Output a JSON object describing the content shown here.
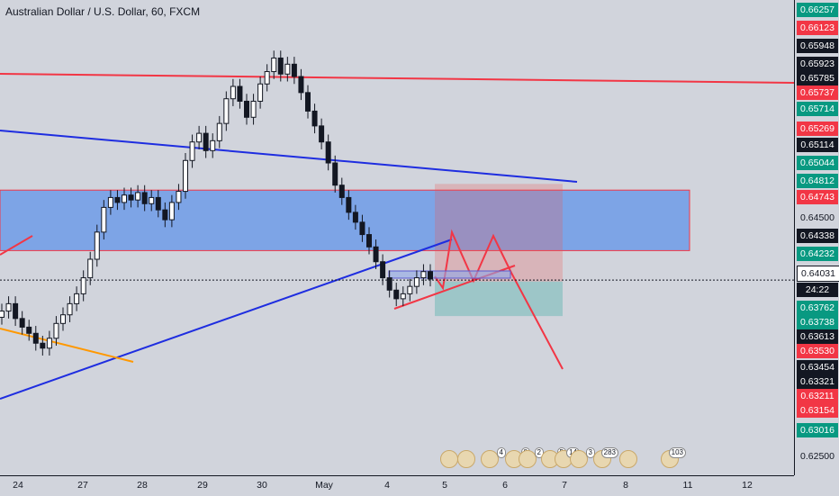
{
  "header": {
    "title": "Australian Dollar / U.S. Dollar, 60, FXCM"
  },
  "colors": {
    "background": "#d1d4dc",
    "bull": "#131722",
    "bear": "#131722",
    "resistance": "#f23645",
    "trend": "#1e2de0",
    "zone": "#6f9be8",
    "target": "#26a69a",
    "stop": "#ef5350",
    "support_orange": "#ff9800"
  },
  "price_axis": {
    "labels": [
      {
        "value": "0.66257",
        "style": "green"
      },
      {
        "value": "0.66123",
        "style": "red"
      },
      {
        "value": "0.65948",
        "style": "dark"
      },
      {
        "value": "0.65923",
        "style": "dark"
      },
      {
        "value": "0.65785",
        "style": "dark"
      },
      {
        "value": "0.65737",
        "style": "red"
      },
      {
        "value": "0.65714",
        "style": "green"
      },
      {
        "value": "0.65269",
        "style": "red"
      },
      {
        "value": "0.65114",
        "style": "dark"
      },
      {
        "value": "0.65044",
        "style": "green"
      },
      {
        "value": "0.64812",
        "style": "green"
      },
      {
        "value": "0.64743",
        "style": "red"
      },
      {
        "value": "0.64500",
        "style": "plain"
      },
      {
        "value": "0.64338",
        "style": "dark"
      },
      {
        "value": "0.64232",
        "style": "green"
      },
      {
        "value": "0.64031",
        "style": "white"
      },
      {
        "value": "24:22",
        "style": "dark"
      },
      {
        "value": "0.63762",
        "style": "green"
      },
      {
        "value": "0.63738",
        "style": "green"
      },
      {
        "value": "0.63613",
        "style": "dark"
      },
      {
        "value": "0.63530",
        "style": "red"
      },
      {
        "value": "0.63454",
        "style": "dark"
      },
      {
        "value": "0.63321",
        "style": "dark"
      },
      {
        "value": "0.63211",
        "style": "red"
      },
      {
        "value": "0.63154",
        "style": "red"
      },
      {
        "value": "0.63016",
        "style": "green"
      },
      {
        "value": "0.62500",
        "style": "plain"
      }
    ]
  },
  "time_axis": {
    "labels": [
      "24",
      "27",
      "28",
      "29",
      "30",
      "May",
      "4",
      "5",
      "6",
      "7",
      "8",
      "11",
      "12"
    ]
  },
  "events": [
    {
      "badge": ""
    },
    {
      "badge": ""
    },
    {
      "badge": "4"
    },
    {
      "badge": "8"
    },
    {
      "badge": "2"
    },
    {
      "badge": "5"
    },
    {
      "badge": "14"
    },
    {
      "badge": "3"
    },
    {
      "badge": "283"
    },
    {
      "badge": ""
    },
    {
      "badge": "103"
    }
  ],
  "chart_data": {
    "type": "candlestick",
    "title": "Australian Dollar / U.S. Dollar, 60, FXCM",
    "symbol": "AUDUSD",
    "interval": "60",
    "ylim": [
      0.6245,
      0.663
    ],
    "current_price": 0.64031,
    "countdown": "24:22",
    "x_ticks": [
      "24",
      "27",
      "28",
      "29",
      "30",
      "May",
      "4",
      "5",
      "6",
      "7",
      "8",
      "11",
      "12"
    ],
    "closes": [
      0.6378,
      0.6384,
      0.6372,
      0.6365,
      0.636,
      0.6352,
      0.6348,
      0.6356,
      0.6368,
      0.6375,
      0.6384,
      0.6392,
      0.6405,
      0.642,
      0.6442,
      0.6462,
      0.647,
      0.6466,
      0.6472,
      0.6468,
      0.6474,
      0.6465,
      0.647,
      0.646,
      0.6452,
      0.6466,
      0.6475,
      0.65,
      0.6515,
      0.6522,
      0.6508,
      0.6516,
      0.653,
      0.655,
      0.656,
      0.6548,
      0.6535,
      0.6548,
      0.6562,
      0.6572,
      0.6583,
      0.657,
      0.6578,
      0.6568,
      0.6555,
      0.654,
      0.6528,
      0.6515,
      0.6498,
      0.648,
      0.647,
      0.6458,
      0.645,
      0.644,
      0.643,
      0.6418,
      0.6405,
      0.6395,
      0.6388,
      0.6392,
      0.6398,
      0.6405,
      0.641,
      0.6404
    ],
    "zone": {
      "top": 0.6476,
      "bottom": 0.6427
    },
    "position": {
      "entry": 0.6402,
      "target": 0.6374,
      "stop": 0.6481
    }
  }
}
